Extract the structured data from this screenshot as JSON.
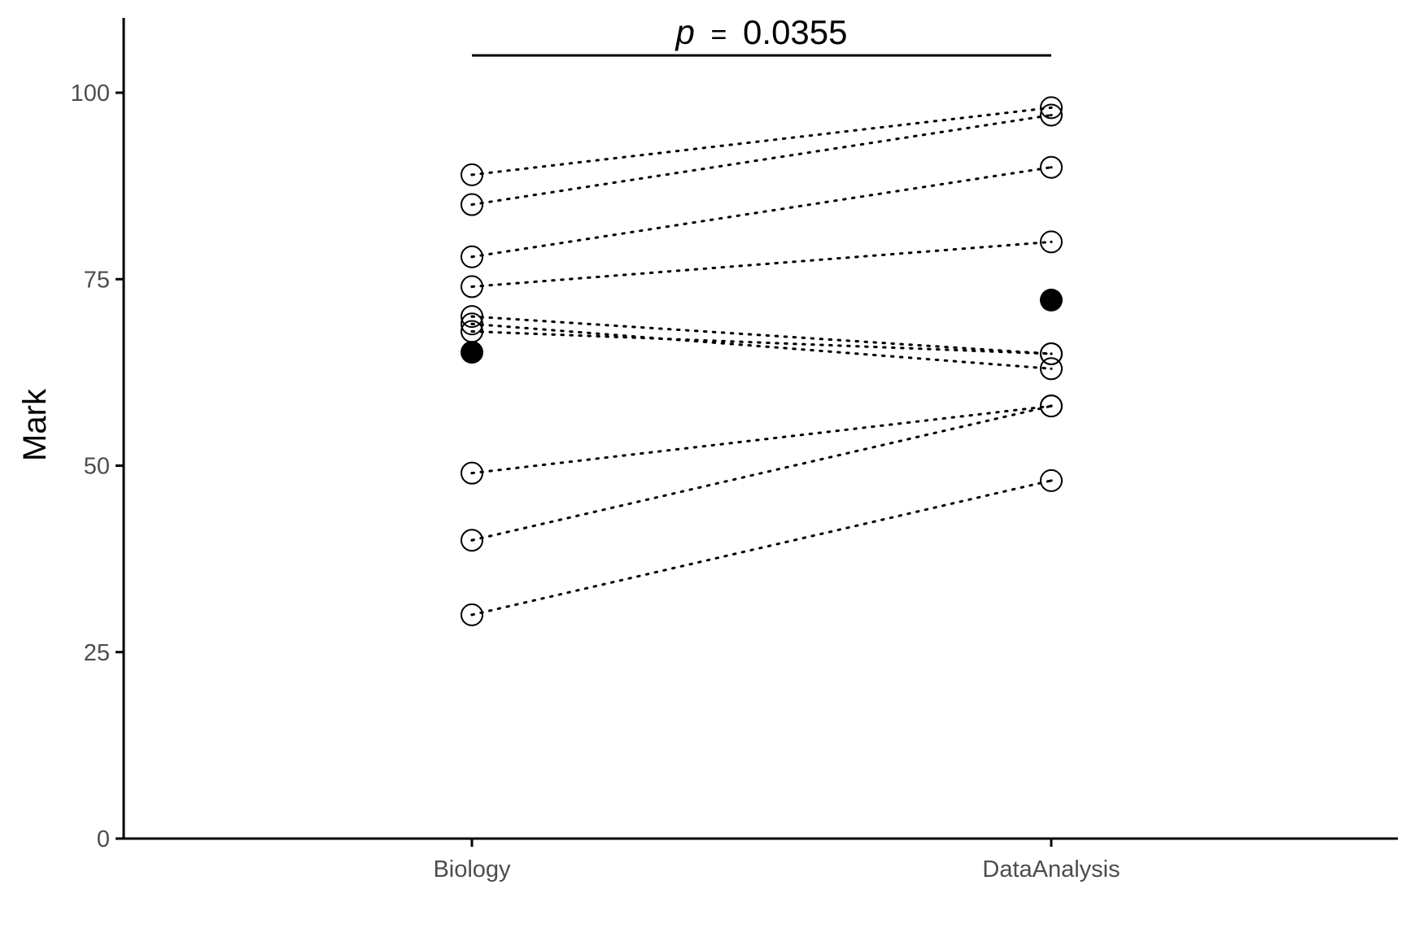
{
  "chart_data": {
    "type": "scatter",
    "subtype": "paired-dot",
    "categories": [
      "Biology",
      "DataAnalysis"
    ],
    "ylabel": "Mark",
    "xlabel": "",
    "ylim": [
      0,
      110
    ],
    "yticks": [
      0,
      25,
      50,
      75,
      100
    ],
    "grid": false,
    "legend": "none",
    "pairs": [
      {
        "Biology": 89,
        "DataAnalysis": 98
      },
      {
        "Biology": 85,
        "DataAnalysis": 97
      },
      {
        "Biology": 78,
        "DataAnalysis": 90
      },
      {
        "Biology": 74,
        "DataAnalysis": 80
      },
      {
        "Biology": 70,
        "DataAnalysis": 65
      },
      {
        "Biology": 69,
        "DataAnalysis": 63
      },
      {
        "Biology": 68,
        "DataAnalysis": 65
      },
      {
        "Biology": 49,
        "DataAnalysis": 58
      },
      {
        "Biology": 40,
        "DataAnalysis": 58
      },
      {
        "Biology": 30,
        "DataAnalysis": 48
      }
    ],
    "means": {
      "Biology": 65.2,
      "DataAnalysis": 72.2
    },
    "annotation": {
      "p_symbol": "p",
      "equals": "=",
      "p_value": "0.0355",
      "y": 105
    },
    "colors": {
      "ink": "#000000",
      "tick_text": "#4d4d4d"
    }
  }
}
